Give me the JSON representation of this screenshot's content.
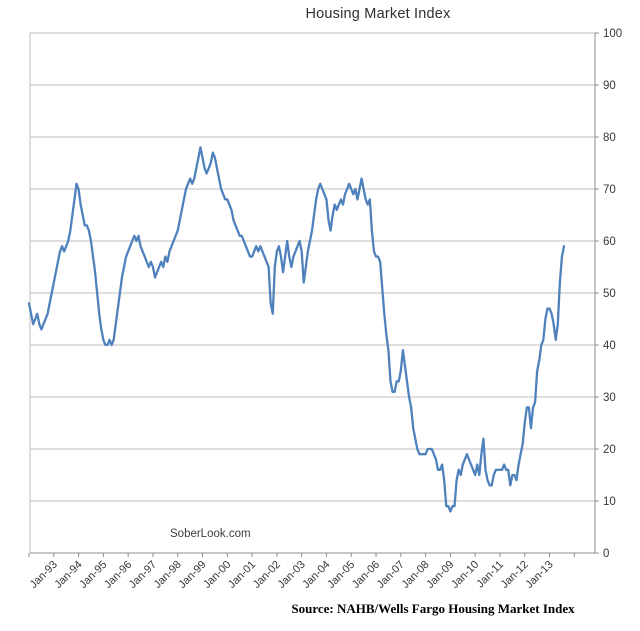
{
  "chart_data": {
    "type": "line",
    "title": "Housing Market Index",
    "watermark": "SoberLook.com",
    "source_note": "Source: NAHB/Wells Fargo Housing Market Index",
    "xlabel": "",
    "ylabel": "",
    "ylim": [
      0,
      100
    ],
    "y_tick_interval": 10,
    "y_axis_side": "right",
    "grid": true,
    "legend": "none",
    "x_tick_labels": [
      "Jan-93",
      "Jan-94",
      "Jan-95",
      "Jan-96",
      "Jan-97",
      "Jan-98",
      "Jan-99",
      "Jan-00",
      "Jan-01",
      "Jan-02",
      "Jan-03",
      "Jan-04",
      "Jan-05",
      "Jan-06",
      "Jan-07",
      "Jan-08",
      "Jan-09",
      "Jan-10",
      "Jan-11",
      "Jan-12",
      "Jan-13"
    ],
    "colors": {
      "line": "#4F81BD",
      "gridline": "#bdbdbd",
      "axis": "#8c8c8c",
      "tick_text": "#383838"
    },
    "series": [
      {
        "name": "NAHB/Wells Fargo Housing Market Index",
        "frequency": "monthly",
        "start_month": "1992-01",
        "end_month": "2013-08",
        "values": [
          48,
          46,
          44,
          45,
          46,
          44,
          43,
          44,
          45,
          46,
          48,
          50,
          52,
          54,
          56,
          58,
          59,
          58,
          59,
          60,
          62,
          65,
          68,
          71,
          70,
          67,
          65,
          63,
          63,
          62,
          60,
          57,
          54,
          50,
          46,
          43,
          41,
          40,
          40,
          41,
          40,
          41,
          44,
          47,
          50,
          53,
          55,
          57,
          58,
          59,
          60,
          61,
          60,
          61,
          59,
          58,
          57,
          56,
          55,
          56,
          55,
          53,
          54,
          55,
          56,
          55,
          57,
          56,
          58,
          59,
          60,
          61,
          62,
          64,
          66,
          68,
          70,
          71,
          72,
          71,
          72,
          74,
          76,
          78,
          76,
          74,
          73,
          74,
          75,
          77,
          76,
          74,
          72,
          70,
          69,
          68,
          68,
          67,
          66,
          64,
          63,
          62,
          61,
          61,
          60,
          59,
          58,
          57,
          57,
          58,
          59,
          58,
          59,
          58,
          57,
          56,
          55,
          48,
          46,
          55,
          58,
          59,
          57,
          54,
          57,
          60,
          57,
          55,
          57,
          58,
          59,
          60,
          58,
          52,
          55,
          58,
          60,
          62,
          65,
          68,
          70,
          71,
          70,
          69,
          68,
          64,
          62,
          65,
          67,
          66,
          67,
          68,
          67,
          69,
          70,
          71,
          70,
          69,
          70,
          68,
          70,
          72,
          70,
          68,
          67,
          68,
          62,
          58,
          57,
          57,
          56,
          51,
          46,
          42,
          39,
          33,
          31,
          31,
          33,
          33,
          35,
          39,
          36,
          33,
          30,
          28,
          24,
          22,
          20,
          19,
          19,
          19,
          19,
          20,
          20,
          20,
          19,
          18,
          16,
          16,
          17,
          14,
          9,
          9,
          8,
          9,
          9,
          14,
          16,
          15,
          17,
          18,
          19,
          18,
          17,
          16,
          15,
          17,
          15,
          19,
          22,
          16,
          14,
          13,
          13,
          15,
          16,
          16,
          16,
          16,
          17,
          16,
          16,
          13,
          15,
          15,
          14,
          17,
          19,
          21,
          25,
          28,
          28,
          24,
          28,
          29,
          35,
          37,
          40,
          41,
          45,
          47,
          47,
          46,
          44,
          41,
          44,
          52,
          57,
          59
        ]
      }
    ]
  }
}
